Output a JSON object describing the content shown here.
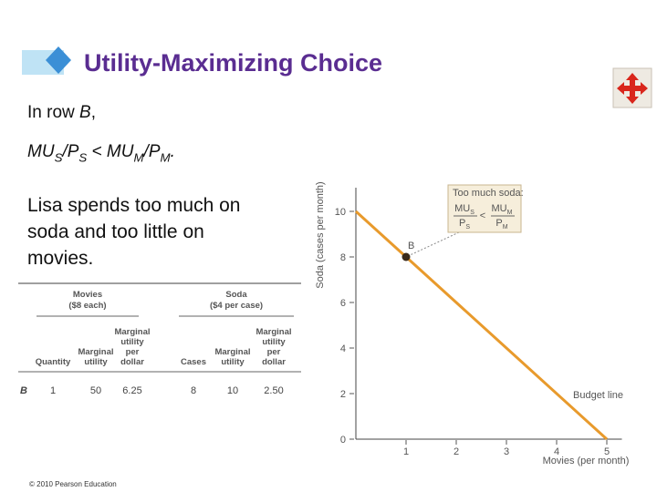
{
  "slide": {
    "title": "Utility-Maximizing Choice",
    "bullets": [
      {
        "italic": false,
        "segments": [
          {
            "text": "In row "
          },
          {
            "text": "B",
            "italic": true
          },
          {
            "text": ","
          }
        ]
      },
      {
        "italic": true,
        "segments": [
          {
            "text": "MU"
          },
          {
            "text": "S",
            "sub": true
          },
          {
            "text": "/P"
          },
          {
            "text": "S",
            "sub": true
          },
          {
            "text": " < MU"
          },
          {
            "text": "M",
            "sub": true
          },
          {
            "text": "/P"
          },
          {
            "text": "M",
            "sub": true
          },
          {
            "text": "."
          }
        ]
      }
    ],
    "paragraph": [
      "Lisa spends too much on",
      "soda and too little on",
      "movies."
    ],
    "footer": "© 2010 Pearson Education"
  },
  "table": {
    "groups": [
      {
        "title": "Movies",
        "subtitle": "($8 each)"
      },
      {
        "title": "Soda",
        "subtitle": "($4 per case)"
      }
    ],
    "columns": [
      [
        "Quantity"
      ],
      [
        "Marginal",
        "utility"
      ],
      [
        "Marginal",
        "utility",
        "per",
        "dollar"
      ],
      [
        "Cases"
      ],
      [
        "Marginal",
        "utility"
      ],
      [
        "Marginal",
        "utility",
        "per",
        "dollar"
      ]
    ],
    "rows": [
      [
        "B",
        "1",
        "50",
        "6.25",
        "8",
        "10",
        "2.50"
      ]
    ]
  },
  "chart_data": {
    "type": "line",
    "x_label": "Movies (per month)",
    "y_label": "Soda (cases per month)",
    "xlim": [
      0,
      5.3
    ],
    "ylim": [
      0,
      10.8
    ],
    "xticks": [
      1,
      2,
      3,
      4,
      5
    ],
    "yticks": [
      0,
      2,
      4,
      6,
      8,
      10
    ],
    "series": [
      {
        "name": "Budget line",
        "color": "#e89a2c",
        "x": [
          0,
          5
        ],
        "values": [
          10,
          0
        ]
      }
    ],
    "points": [
      {
        "label": "B",
        "x": 1,
        "y": 8,
        "color": "#3a2a1a"
      }
    ],
    "annotation": {
      "heading": "Too much soda:",
      "op": "<",
      "fractions": [
        {
          "num": [
            {
              "text": "MU"
            },
            {
              "text": "S",
              "sub": true
            }
          ],
          "den": [
            {
              "text": "P"
            },
            {
              "text": "S",
              "sub": true
            }
          ]
        },
        {
          "num": [
            {
              "text": "MU"
            },
            {
              "text": "M",
              "sub": true
            }
          ],
          "den": [
            {
              "text": "P"
            },
            {
              "text": "M",
              "sub": true
            }
          ]
        }
      ]
    }
  }
}
